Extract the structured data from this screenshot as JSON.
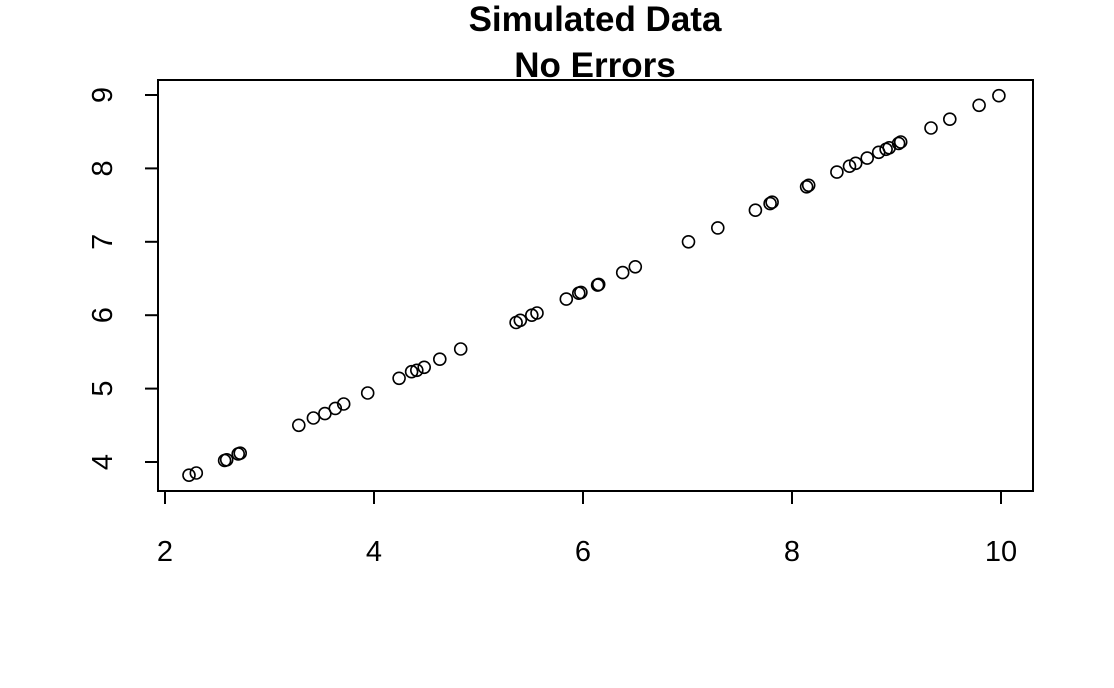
{
  "chart_data": {
    "type": "scatter",
    "title": "Simulated Data",
    "subtitle": "No Errors",
    "xlabel": "",
    "ylabel": "",
    "xlim": [
      2,
      10
    ],
    "ylim": [
      4,
      9
    ],
    "xticks": [
      2,
      4,
      6,
      8,
      10
    ],
    "yticks": [
      4,
      5,
      6,
      7,
      8,
      9
    ],
    "xtick_labels": [
      "2",
      "4",
      "6",
      "8",
      "10"
    ],
    "ytick_labels": [
      "4",
      "5",
      "6",
      "7",
      "8",
      "9"
    ],
    "grid": false,
    "marker": "open-circle",
    "series": [
      {
        "x": [
          2.23,
          2.3,
          2.57,
          2.59,
          2.7,
          2.72,
          3.28,
          3.42,
          3.53,
          3.63,
          3.71,
          3.94,
          4.24,
          4.36,
          4.41,
          4.48,
          4.63,
          4.83,
          5.36,
          5.4,
          5.51,
          5.56,
          5.84,
          5.96,
          5.98,
          6.14,
          6.15,
          6.38,
          6.5,
          7.01,
          7.29,
          7.65,
          7.79,
          7.81,
          8.14,
          8.16,
          8.43,
          8.55,
          8.61,
          8.72,
          8.83,
          8.9,
          8.93,
          9.02,
          9.04,
          9.33,
          9.51,
          9.79,
          9.98
        ],
        "y": [
          3.82,
          3.85,
          4.02,
          4.03,
          4.11,
          4.12,
          4.5,
          4.6,
          4.66,
          4.73,
          4.79,
          4.94,
          5.14,
          5.23,
          5.25,
          5.29,
          5.4,
          5.54,
          5.9,
          5.93,
          6.0,
          6.03,
          6.22,
          6.3,
          6.31,
          6.41,
          6.42,
          6.58,
          6.66,
          7.0,
          7.19,
          7.43,
          7.52,
          7.54,
          7.75,
          7.77,
          7.95,
          8.03,
          8.07,
          8.14,
          8.22,
          8.26,
          8.28,
          8.34,
          8.36,
          8.55,
          8.67,
          8.86,
          8.99
        ]
      }
    ],
    "colors": {
      "points": "#000000",
      "axes": "#000000",
      "background": "#ffffff"
    }
  }
}
